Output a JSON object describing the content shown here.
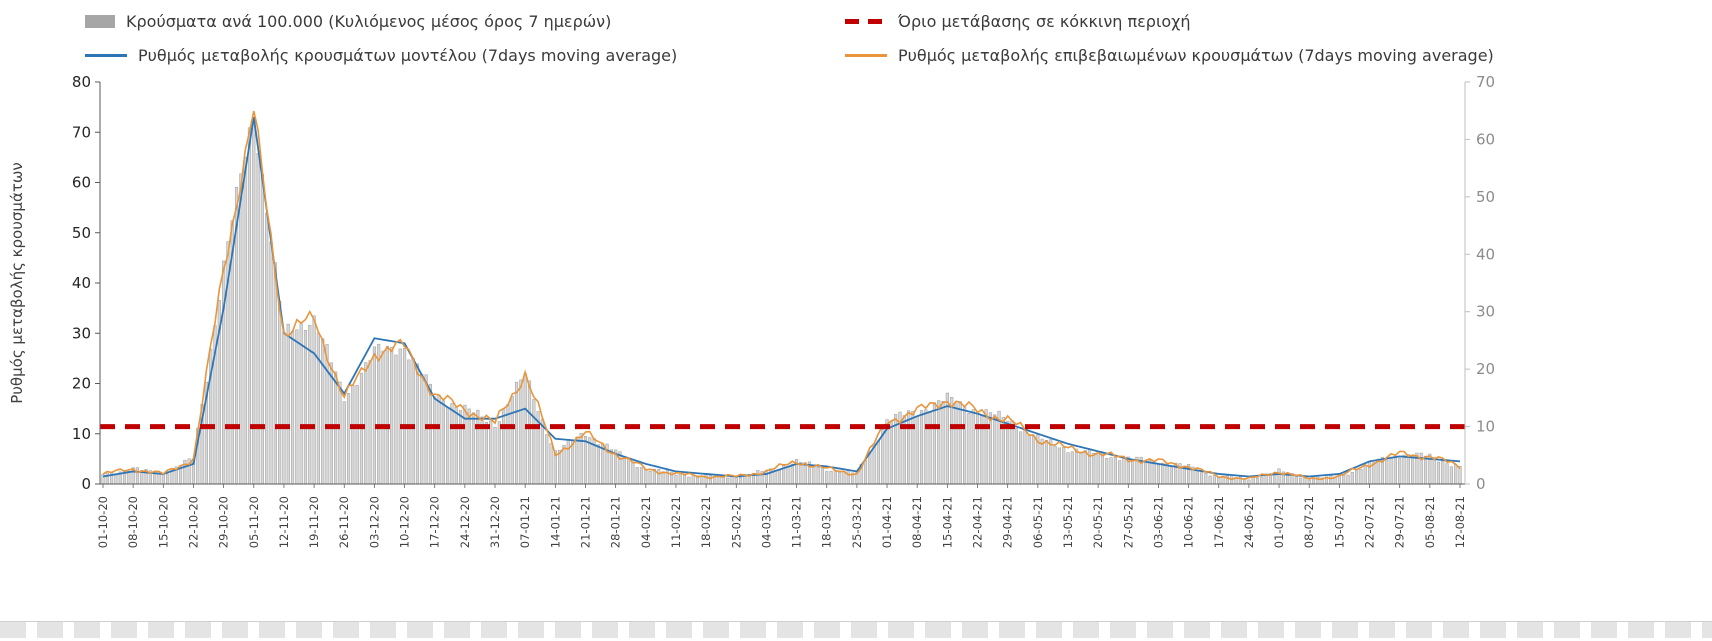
{
  "chart_data": {
    "type": "combo",
    "title": "",
    "x_tick_labels": [
      "01-10-20",
      "08-10-20",
      "15-10-20",
      "22-10-20",
      "29-10-20",
      "05-11-20",
      "12-11-20",
      "19-11-20",
      "26-11-20",
      "03-12-20",
      "10-12-20",
      "17-12-20",
      "24-12-20",
      "31-12-20",
      "07-01-21",
      "14-01-21",
      "21-01-21",
      "28-01-21",
      "04-02-21",
      "11-02-21",
      "18-02-21",
      "25-02-21",
      "04-03-21",
      "11-03-21",
      "18-03-21",
      "25-03-21",
      "01-04-21",
      "08-04-21",
      "15-04-21",
      "22-04-21",
      "29-04-21",
      "06-05-21",
      "13-05-21",
      "20-05-21",
      "27-05-21",
      "03-06-21",
      "10-06-21",
      "17-06-21",
      "24-06-21",
      "01-07-21",
      "08-07-21",
      "15-07-21",
      "22-07-21",
      "29-07-21",
      "05-08-21",
      "12-08-21"
    ],
    "y_left": {
      "label": "Ρυθμός μεταβολής κρουσμάτων",
      "min": 0,
      "max": 80,
      "ticks": [
        0,
        10,
        20,
        30,
        40,
        50,
        60,
        70,
        80
      ]
    },
    "y_right": {
      "label": "",
      "min": 0,
      "max": 70,
      "ticks": [
        0,
        10,
        20,
        30,
        40,
        50,
        60,
        70
      ]
    },
    "threshold": {
      "name": "Όριο μετάβασης σε κόκκινη περιοχή",
      "axis": "right",
      "value": 10,
      "color": "#c00000"
    },
    "series": [
      {
        "name": "Κρούσματα ανά 100.000 (Κυλιόμενος μέσος όρος 7 ημερών)",
        "type": "bar",
        "axis": "right",
        "color": "#a6a6a6",
        "values": [
          1.8,
          2.6,
          1.8,
          4.4,
          38,
          65,
          26,
          29,
          15,
          23,
          24,
          15.5,
          13,
          10.5,
          19,
          5.5,
          9,
          5.5,
          2.6,
          1.8,
          1.3,
          1.3,
          2.2,
          3.9,
          2.6,
          1.8,
          11,
          12.7,
          14.8,
          12.7,
          11.3,
          7.9,
          6.1,
          5.2,
          4.4,
          3.9,
          3,
          1.3,
          0.9,
          2.2,
          0.9,
          1.3,
          3.5,
          5.2,
          4.8,
          3
        ]
      },
      {
        "name": "Ρυθμός μεταβολής κρουσμάτων μοντέλου (7days moving average)",
        "type": "line",
        "axis": "left",
        "color": "#2e75b6",
        "values": [
          1.5,
          2.5,
          2,
          4,
          35,
          73,
          30,
          26,
          18,
          29,
          28,
          17,
          13,
          13,
          15,
          9,
          8.5,
          6,
          4,
          2.5,
          2,
          1.5,
          2,
          4,
          3.5,
          2.5,
          11,
          13.5,
          15.5,
          14,
          12,
          10,
          8,
          6.5,
          5,
          4,
          3,
          2,
          1.5,
          2,
          1.5,
          2,
          4.5,
          5.5,
          5,
          4.5
        ]
      },
      {
        "name": "Ρυθμός μεταβολής επιβεβαιωμένων κρουσμάτων (7days moving average)",
        "type": "line",
        "axis": "left",
        "color": "#e8953c",
        "values": [
          2,
          3,
          2,
          5,
          43,
          74,
          30,
          33,
          17,
          26,
          27.5,
          17.5,
          15,
          12,
          22,
          6,
          10,
          6,
          3,
          2,
          1.5,
          1.5,
          2.5,
          4.5,
          3,
          2,
          12.5,
          14.5,
          16.8,
          14.5,
          12.8,
          9,
          7,
          6,
          5,
          4.5,
          3.5,
          1.5,
          1,
          2.5,
          1,
          1.5,
          4,
          6,
          5.5,
          3.5
        ]
      }
    ]
  }
}
